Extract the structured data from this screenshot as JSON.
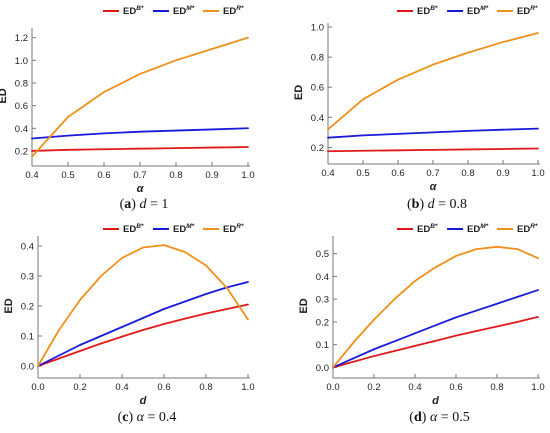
{
  "colors": {
    "ED_B": "#e01a1a",
    "ED_M": "#1a1adc",
    "ED_R": "#f0901a"
  },
  "chart_data": [
    {
      "type": "line",
      "caption": {
        "letter": "a",
        "var": "d",
        "value": "1"
      },
      "xlabel": "α",
      "ylabel": "ED",
      "xlim": [
        0.4,
        1.0
      ],
      "ylim": [
        0.12,
        1.25
      ],
      "xticks": [
        "0.4",
        "0.5",
        "0.6",
        "0.7",
        "0.8",
        "0.9",
        "1.0"
      ],
      "yticks": [
        "0.2",
        "0.4",
        "0.6",
        "0.8",
        "1.0",
        "1.2"
      ],
      "legend": [
        {
          "base": "ED",
          "sup": "B*"
        },
        {
          "base": "ED",
          "sup": "M*"
        },
        {
          "base": "ED",
          "sup": "R*"
        }
      ],
      "x": [
        0.4,
        0.5,
        0.6,
        0.7,
        0.8,
        0.9,
        1.0
      ],
      "series": [
        {
          "name": "ED^B*",
          "color_key": "ED_B",
          "values": [
            0.2,
            0.21,
            0.215,
            0.22,
            0.225,
            0.23,
            0.235
          ]
        },
        {
          "name": "ED^M*",
          "color_key": "ED_M",
          "values": [
            0.31,
            0.335,
            0.355,
            0.37,
            0.38,
            0.39,
            0.4
          ]
        },
        {
          "name": "ED^R*",
          "color_key": "ED_R",
          "values": [
            0.15,
            0.5,
            0.72,
            0.88,
            1.0,
            1.1,
            1.2
          ]
        }
      ]
    },
    {
      "type": "line",
      "caption": {
        "letter": "b",
        "var": "d",
        "value": "0.8"
      },
      "xlabel": "α",
      "ylabel": "ED",
      "xlim": [
        0.4,
        1.0
      ],
      "ylim": [
        0.13,
        1.0
      ],
      "xticks": [
        "0.4",
        "0.5",
        "0.6",
        "0.7",
        "0.8",
        "0.9",
        "1.0"
      ],
      "yticks": [
        "0.2",
        "0.4",
        "0.6",
        "0.8",
        "1.0"
      ],
      "legend": [
        {
          "base": "ED",
          "sup": "B*"
        },
        {
          "base": "ED",
          "sup": "M*"
        },
        {
          "base": "ED",
          "sup": "R*"
        }
      ],
      "x": [
        0.4,
        0.5,
        0.6,
        0.7,
        0.8,
        0.9,
        1.0
      ],
      "series": [
        {
          "name": "ED^B*",
          "color_key": "ED_B",
          "values": [
            0.175,
            0.178,
            0.181,
            0.184,
            0.187,
            0.19,
            0.193
          ]
        },
        {
          "name": "ED^M*",
          "color_key": "ED_M",
          "values": [
            0.265,
            0.28,
            0.29,
            0.3,
            0.31,
            0.318,
            0.325
          ]
        },
        {
          "name": "ED^R*",
          "color_key": "ED_R",
          "values": [
            0.32,
            0.52,
            0.65,
            0.75,
            0.83,
            0.9,
            0.96
          ]
        }
      ]
    },
    {
      "type": "line",
      "caption": {
        "letter": "c",
        "var": "α",
        "value": "0.4"
      },
      "xlabel": "d",
      "ylabel": "ED",
      "xlim": [
        0.0,
        1.0
      ],
      "ylim": [
        -0.02,
        0.42
      ],
      "xticks": [
        "0.0",
        "0.2",
        "0.4",
        "0.6",
        "0.8",
        "1.0"
      ],
      "yticks": [
        "0.0",
        "0.1",
        "0.2",
        "0.3",
        "0.4"
      ],
      "legend": [
        {
          "base": "ED",
          "sup": "B*"
        },
        {
          "base": "ED",
          "sup": "M*"
        },
        {
          "base": "ED",
          "sup": "R*"
        }
      ],
      "x": [
        0.0,
        0.1,
        0.2,
        0.3,
        0.4,
        0.5,
        0.6,
        0.7,
        0.8,
        0.9,
        1.0
      ],
      "series": [
        {
          "name": "ED^B*",
          "color_key": "ED_B",
          "values": [
            0.0,
            0.025,
            0.05,
            0.075,
            0.098,
            0.12,
            0.14,
            0.158,
            0.175,
            0.19,
            0.205
          ]
        },
        {
          "name": "ED^M*",
          "color_key": "ED_M",
          "values": [
            0.0,
            0.035,
            0.07,
            0.1,
            0.13,
            0.16,
            0.19,
            0.215,
            0.24,
            0.262,
            0.28
          ]
        },
        {
          "name": "ED^R*",
          "color_key": "ED_R",
          "values": [
            0.0,
            0.12,
            0.22,
            0.3,
            0.36,
            0.395,
            0.403,
            0.38,
            0.335,
            0.26,
            0.155
          ]
        }
      ]
    },
    {
      "type": "line",
      "caption": {
        "letter": "d",
        "var": "α",
        "value": "0.5"
      },
      "xlabel": "d",
      "ylabel": "ED",
      "xlim": [
        0.0,
        1.0
      ],
      "ylim": [
        -0.02,
        0.56
      ],
      "xticks": [
        "0.0",
        "0.2",
        "0.4",
        "0.6",
        "0.8",
        "1.0"
      ],
      "yticks": [
        "0.0",
        "0.1",
        "0.2",
        "0.3",
        "0.4",
        "0.5"
      ],
      "legend": [
        {
          "base": "ED",
          "sup": "B*"
        },
        {
          "base": "ED",
          "sup": "M*"
        },
        {
          "base": "ED",
          "sup": "R*"
        }
      ],
      "x": [
        0.0,
        0.1,
        0.2,
        0.3,
        0.4,
        0.5,
        0.6,
        0.7,
        0.8,
        0.9,
        1.0
      ],
      "series": [
        {
          "name": "ED^B*",
          "color_key": "ED_B",
          "values": [
            0.0,
            0.025,
            0.05,
            0.072,
            0.095,
            0.117,
            0.14,
            0.16,
            0.18,
            0.2,
            0.222
          ]
        },
        {
          "name": "ED^M*",
          "color_key": "ED_M",
          "values": [
            0.0,
            0.04,
            0.08,
            0.115,
            0.15,
            0.185,
            0.22,
            0.25,
            0.28,
            0.31,
            0.34
          ]
        },
        {
          "name": "ED^R*",
          "color_key": "ED_R",
          "values": [
            0.0,
            0.11,
            0.21,
            0.3,
            0.38,
            0.44,
            0.49,
            0.52,
            0.53,
            0.52,
            0.48
          ]
        }
      ]
    }
  ]
}
